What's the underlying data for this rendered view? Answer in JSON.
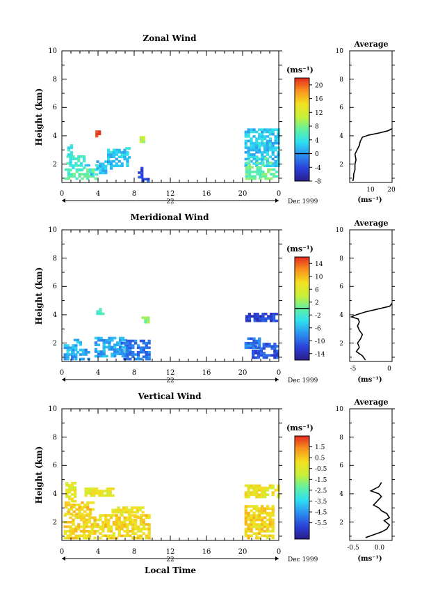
{
  "chart_data": [
    {
      "type": "heatmap",
      "title": "Zonal Wind",
      "ylabel": "Height (km)",
      "ylim": [
        0.7,
        10
      ],
      "xlim": [
        0,
        24
      ],
      "x_ticks": [
        "0",
        "4",
        "8",
        "12",
        "16",
        "20",
        "0"
      ],
      "y_ticks": [
        "2",
        "4",
        "6",
        "8",
        "10"
      ],
      "date_label": "22",
      "date_text": "Dec 1999",
      "colorbar": {
        "unit": "(ms⁻¹)",
        "min": -8,
        "max": 22,
        "ticks": [
          "20",
          "16",
          "12",
          "8",
          "4",
          "0",
          "-4",
          "-8"
        ],
        "tick_values": [
          20,
          16,
          12,
          8,
          4,
          0,
          -4,
          -8
        ],
        "marker": 0
      },
      "regions": [
        {
          "t0": 0.3,
          "t1": 3.8,
          "h0": 0.9,
          "h1": 1.6,
          "v": 6
        },
        {
          "t0": 0.5,
          "t1": 2.5,
          "h0": 1.5,
          "h1": 2.6,
          "v": 5
        },
        {
          "t0": 0.6,
          "t1": 1.1,
          "h0": 2.6,
          "h1": 3.4,
          "v": 3
        },
        {
          "t0": 2.2,
          "t1": 3.8,
          "h0": 1.2,
          "h1": 1.9,
          "v": 3
        },
        {
          "t0": 3.8,
          "t1": 5.5,
          "h0": 1.3,
          "h1": 2.2,
          "v": 2
        },
        {
          "t0": 5.0,
          "t1": 7.2,
          "h0": 1.8,
          "h1": 3.0,
          "v": 2.5
        },
        {
          "t0": 7.0,
          "t1": 7.6,
          "h0": 2.4,
          "h1": 3.2,
          "v": 3
        },
        {
          "t0": 3.7,
          "t1": 4.3,
          "h0": 3.9,
          "h1": 4.3,
          "v": 20
        },
        {
          "t0": 8.6,
          "t1": 9.0,
          "h0": 3.5,
          "h1": 3.9,
          "v": 10
        },
        {
          "t0": 8.4,
          "t1": 8.9,
          "h0": 1.0,
          "h1": 1.8,
          "v": -4
        },
        {
          "t0": 8.8,
          "t1": 9.7,
          "h0": 0.7,
          "h1": 1.0,
          "v": -3
        },
        {
          "t0": 20.2,
          "t1": 23.9,
          "h0": 1.8,
          "h1": 4.5,
          "v": 2.2
        },
        {
          "t0": 20.3,
          "t1": 23.8,
          "h0": 0.9,
          "h1": 2.4,
          "v": 7
        }
      ]
    },
    {
      "type": "heatmap",
      "title": "Meridional Wind",
      "ylabel": "Height (km)",
      "ylim": [
        0.7,
        10
      ],
      "xlim": [
        0,
        24
      ],
      "x_ticks": [
        "0",
        "4",
        "8",
        "12",
        "16",
        "20",
        "0"
      ],
      "y_ticks": [
        "2",
        "4",
        "6",
        "8",
        "10"
      ],
      "date_label": "22",
      "date_text": "Dec 1999",
      "colorbar": {
        "unit": "(ms⁻¹)",
        "min": -16,
        "max": 16,
        "ticks": [
          "14",
          "10",
          "6",
          "2",
          "-2",
          "-6",
          "-10",
          "-14"
        ],
        "tick_values": [
          14,
          10,
          6,
          2,
          -2,
          -6,
          -10,
          -14
        ],
        "marker": 0
      },
      "regions": [
        {
          "t0": 0.2,
          "t1": 1.5,
          "h0": 0.8,
          "h1": 1.8,
          "v": -6
        },
        {
          "t0": 1.0,
          "t1": 3.0,
          "h0": 0.8,
          "h1": 1.5,
          "v": -7
        },
        {
          "t0": 1.3,
          "t1": 2.0,
          "h0": 1.5,
          "h1": 2.2,
          "v": -5
        },
        {
          "t0": 3.6,
          "t1": 7.0,
          "h0": 1.0,
          "h1": 2.4,
          "v": -7
        },
        {
          "t0": 6.5,
          "t1": 9.6,
          "h0": 0.8,
          "h1": 2.2,
          "v": -9
        },
        {
          "t0": 3.8,
          "t1": 4.6,
          "h0": 4.0,
          "h1": 4.4,
          "v": -2
        },
        {
          "t0": 8.8,
          "t1": 9.5,
          "h0": 3.4,
          "h1": 3.8,
          "v": 2
        },
        {
          "t0": 20.2,
          "t1": 22.0,
          "h0": 1.6,
          "h1": 2.4,
          "v": -9
        },
        {
          "t0": 21.0,
          "t1": 23.8,
          "h0": 0.9,
          "h1": 2.0,
          "v": -11
        },
        {
          "t0": 20.3,
          "t1": 23.9,
          "h0": 3.5,
          "h1": 4.0,
          "v": -12
        }
      ]
    },
    {
      "type": "heatmap",
      "title": "Vertical Wind",
      "ylabel": "Height (km)",
      "xlabel": "Local Time",
      "ylim": [
        0.7,
        10
      ],
      "xlim": [
        0,
        24
      ],
      "x_ticks": [
        "0",
        "4",
        "8",
        "12",
        "16",
        "20",
        "0"
      ],
      "y_ticks": [
        "2",
        "4",
        "6",
        "8",
        "10"
      ],
      "date_label": "22",
      "date_text": "Dec 1999",
      "colorbar": {
        "unit": "(ms⁻¹)",
        "min": -7,
        "max": 2.5,
        "ticks": [
          "1.5",
          "0.5",
          "-0.5",
          "-1.5",
          "-2.5",
          "-3.5",
          "-4.5",
          "-5.5"
        ],
        "tick_values": [
          1.5,
          0.5,
          -0.5,
          -1.5,
          -2.5,
          -3.5,
          -4.5,
          -5.5
        ]
      },
      "regions": [
        {
          "t0": 0.2,
          "t1": 9.8,
          "h0": 0.8,
          "h1": 2.5,
          "v": 0.2
        },
        {
          "t0": 0.3,
          "t1": 3.5,
          "h0": 2.5,
          "h1": 3.4,
          "v": 0.3
        },
        {
          "t0": 0.4,
          "t1": 1.4,
          "h0": 3.4,
          "h1": 4.8,
          "v": -0.3
        },
        {
          "t0": 2.5,
          "t1": 5.6,
          "h0": 3.8,
          "h1": 4.4,
          "v": -0.3
        },
        {
          "t0": 5.5,
          "t1": 9.0,
          "h0": 2.3,
          "h1": 3.0,
          "v": -0.2
        },
        {
          "t0": 20.2,
          "t1": 23.9,
          "h0": 3.7,
          "h1": 4.6,
          "v": -0.2
        },
        {
          "t0": 20.2,
          "t1": 23.5,
          "h0": 0.8,
          "h1": 3.1,
          "v": 0.2
        }
      ]
    },
    {
      "type": "line",
      "title": "Average",
      "xlabel": "(ms⁻¹)",
      "xlim": [
        0,
        20
      ],
      "ylim": [
        0.7,
        10
      ],
      "x_ticks": [
        "10",
        "20"
      ],
      "y_ticks": [
        "2",
        "4",
        "6",
        "8",
        "10"
      ],
      "series": [
        {
          "x": [
            1.5,
            1.8,
            1.9,
            2.5,
            2.5,
            3.0,
            2.5,
            3.5,
            4.5,
            5.0,
            6.0,
            9.0,
            14.0,
            18.0,
            20.0
          ],
          "y": [
            0.8,
            1.0,
            1.3,
            1.6,
            2.0,
            2.3,
            2.7,
            3.0,
            3.3,
            3.6,
            3.9,
            4.05,
            4.2,
            4.35,
            4.5
          ]
        }
      ]
    },
    {
      "type": "line",
      "title": "Average",
      "xlabel": "(ms⁻¹)",
      "xlim": [
        -6.6,
        0.4
      ],
      "ylim": [
        0.7,
        10
      ],
      "x_ticks": [
        "-5",
        "0"
      ],
      "y_ticks": [
        "2",
        "4",
        "6",
        "8",
        "10"
      ],
      "series": [
        {
          "x": [
            -4.0,
            -4.5,
            -5.5,
            -5.0,
            -5.3,
            -4.8,
            -4.5,
            -5.0,
            -5.3,
            -5.0,
            -5.2,
            -6.3,
            -5.5,
            -4.0,
            -2.0,
            0.0,
            0.4
          ],
          "y": [
            0.8,
            1.1,
            1.4,
            1.7,
            2.0,
            2.3,
            2.6,
            2.9,
            3.2,
            3.5,
            3.7,
            3.85,
            4.0,
            4.2,
            4.4,
            4.6,
            4.8
          ]
        }
      ]
    },
    {
      "type": "line",
      "title": "Average",
      "xlabel": "(ms⁻¹)",
      "xlim": [
        -0.6,
        0.2
      ],
      "ylim": [
        0.7,
        10
      ],
      "x_ticks": [
        "-0.5",
        "0.0"
      ],
      "y_ticks": [
        "2",
        "4",
        "6",
        "8",
        "10"
      ],
      "series": [
        {
          "x": [
            -0.3,
            -0.15,
            0.0,
            0.1,
            0.15,
            0.05,
            0.15,
            0.1,
            0.0,
            -0.05,
            -0.15,
            -0.1,
            -0.05,
            0.0,
            -0.05,
            -0.2,
            -0.05,
            0.0
          ],
          "y": [
            0.9,
            1.1,
            1.3,
            1.5,
            1.8,
            2.1,
            2.3,
            2.6,
            2.8,
            3.0,
            3.2,
            3.4,
            3.6,
            3.8,
            4.0,
            4.2,
            4.5,
            4.8
          ]
        }
      ]
    }
  ]
}
